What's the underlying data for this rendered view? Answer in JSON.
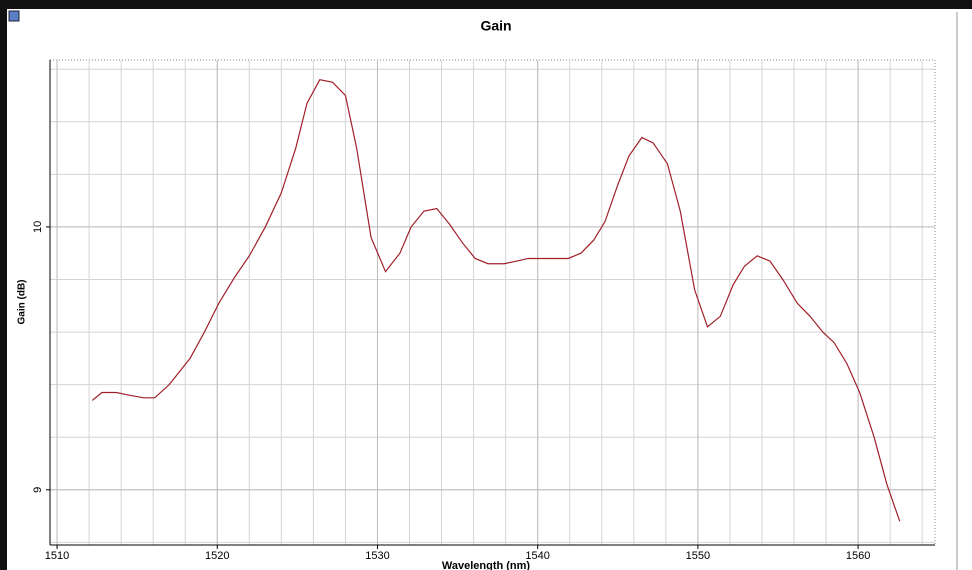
{
  "chart_data": {
    "type": "line",
    "title": "Gain",
    "x_label": "Wavelength (nm)",
    "y_label": "Gain (dB)",
    "x": [
      1512.2,
      1512.8,
      1513.7,
      1514.5,
      1515.4,
      1516.1,
      1517.0,
      1518.3,
      1519.2,
      1520.1,
      1521.1,
      1522.0,
      1523.0,
      1524.0,
      1524.9,
      1525.6,
      1526.4,
      1527.2,
      1528.0,
      1528.7,
      1529.6,
      1530.5,
      1531.4,
      1532.1,
      1532.9,
      1533.7,
      1534.5,
      1535.3,
      1536.1,
      1536.9,
      1537.9,
      1538.7,
      1539.4,
      1540.7,
      1541.9,
      1542.7,
      1543.5,
      1544.2,
      1545.0,
      1545.7,
      1546.5,
      1547.2,
      1548.1,
      1548.9,
      1549.8,
      1550.6,
      1551.4,
      1552.2,
      1552.9,
      1553.7,
      1554.5,
      1555.3,
      1556.2,
      1557.0,
      1557.8,
      1558.5,
      1559.3,
      1560.1,
      1561.0,
      1561.8,
      1562.6
    ],
    "series": [
      {
        "name": "Gain",
        "color": "#a0202a",
        "values": [
          9.34,
          9.37,
          9.37,
          9.36,
          9.35,
          9.35,
          9.4,
          9.5,
          9.6,
          9.71,
          9.81,
          9.89,
          10.0,
          10.13,
          10.3,
          10.47,
          10.56,
          10.55,
          10.5,
          10.3,
          9.96,
          9.83,
          9.9,
          10.0,
          10.06,
          10.07,
          10.01,
          9.94,
          9.88,
          9.86,
          9.86,
          9.87,
          9.88,
          9.88,
          9.88,
          9.9,
          9.95,
          10.02,
          10.16,
          10.27,
          10.34,
          10.32,
          10.24,
          10.06,
          9.76,
          9.62,
          9.66,
          9.78,
          9.85,
          9.89,
          9.87,
          9.8,
          9.71,
          9.66,
          9.6,
          9.56,
          9.48,
          9.37,
          9.2,
          9.02,
          8.88
        ]
      }
    ],
    "xlim": [
      1509.56,
      1564.8
    ],
    "xticks": [
      1510,
      1520,
      1530,
      1540,
      1550,
      1560
    ],
    "ylim": [
      8.79,
      10.635
    ],
    "yticks": [
      9,
      10
    ],
    "grid": true
  }
}
